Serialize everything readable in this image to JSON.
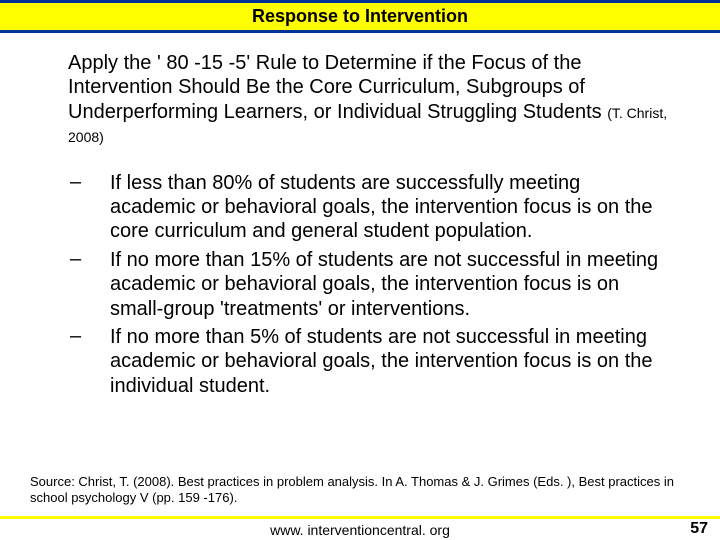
{
  "header": {
    "title": "Response to Intervention",
    "background_color": "#ffff00",
    "border_color": "#003399",
    "title_fontsize": 18
  },
  "main": {
    "heading_text": "Apply the ' 80 -15 -5' Rule to Determine if the Focus of the Intervention Should Be the Core Curriculum, Subgroups of Underperforming Learners, or Individual Struggling Students ",
    "heading_citation": "(T. Christ, 2008)",
    "heading_fontsize": 20,
    "bullets": [
      {
        "marker": "–",
        "text": "If less than 80% of students are successfully meeting academic or behavioral goals, the intervention focus is on the core curriculum and general student population."
      },
      {
        "marker": "–",
        "text": "If no more than 15% of students are not successful in meeting academic or behavioral goals, the intervention focus is on small-group 'treatments' or interventions."
      },
      {
        "marker": "–",
        "text": "If no more than 5% of students are not successful in meeting academic or behavioral goals, the intervention focus is on the individual student."
      }
    ],
    "bullet_fontsize": 20
  },
  "source": {
    "text": "Source: Christ, T. (2008). Best practices in problem analysis. In A. Thomas & J. Grimes (Eds. ), Best practices in school psychology V (pp. 159 -176).",
    "fontsize": 13
  },
  "footer": {
    "url": "www. interventioncentral. org",
    "page_number": "57",
    "border_color": "#ffff00",
    "url_fontsize": 14,
    "pagenum_fontsize": 16
  },
  "colors": {
    "background": "#ffffff",
    "text": "#000000"
  }
}
